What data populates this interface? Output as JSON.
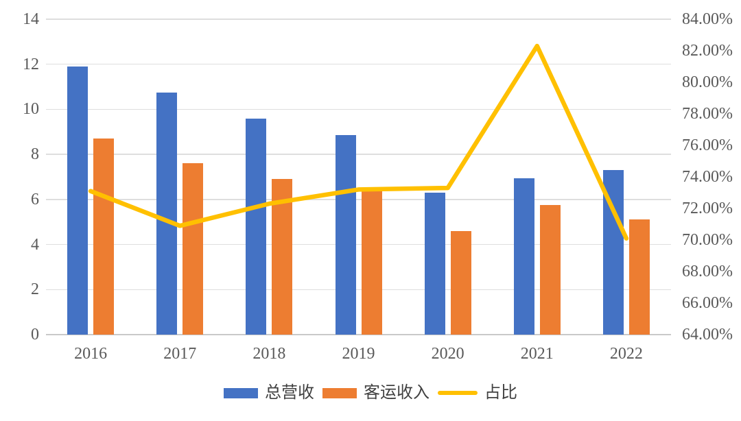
{
  "chart_data": {
    "type": "bar",
    "subtype": "combo-clustered-bar-with-line",
    "title": "",
    "categories": [
      "2016",
      "2017",
      "2018",
      "2019",
      "2020",
      "2021",
      "2022"
    ],
    "series": [
      {
        "name": "总营收",
        "type": "bar",
        "axis": "left",
        "color": "#4472C4",
        "values": [
          11.9,
          10.75,
          9.6,
          8.85,
          6.3,
          6.95,
          7.3
        ]
      },
      {
        "name": "客运收入",
        "type": "bar",
        "axis": "left",
        "color": "#ED7D31",
        "values": [
          8.7,
          7.6,
          6.9,
          6.45,
          4.6,
          5.75,
          5.1
        ]
      },
      {
        "name": "占比",
        "type": "line",
        "axis": "right",
        "color": "#FFC000",
        "values": [
          73.1,
          70.9,
          72.3,
          73.2,
          73.3,
          82.3,
          70.1
        ]
      }
    ],
    "left_axis": {
      "min": 0,
      "max": 14,
      "step": 2,
      "ticks_top_to_bottom": [
        "14",
        "12",
        "10",
        "8",
        "6",
        "4",
        "2",
        "0"
      ]
    },
    "right_axis": {
      "min": 64,
      "max": 84,
      "step": 2,
      "ticks_top_to_bottom": [
        "84.00%",
        "82.00%",
        "80.00%",
        "78.00%",
        "76.00%",
        "74.00%",
        "72.00%",
        "70.00%",
        "68.00%",
        "66.00%",
        "64.00%"
      ]
    },
    "grid": true,
    "legend_position": "bottom"
  },
  "legend": {
    "items": [
      {
        "label": "总营收",
        "swatch": "bar",
        "color": "#4472C4"
      },
      {
        "label": "客运收入",
        "swatch": "bar",
        "color": "#ED7D31"
      },
      {
        "label": "占比",
        "swatch": "line",
        "color": "#FFC000"
      }
    ]
  },
  "colors": {
    "background": "#FFFFFF",
    "bar_blue": "#4472C4",
    "bar_orange": "#ED7D31",
    "line_gold": "#FFC000",
    "gridline": "#DEDEDE",
    "baseline": "#C9C9C9",
    "tick_label": "#595959",
    "legend_text": "#404040"
  }
}
